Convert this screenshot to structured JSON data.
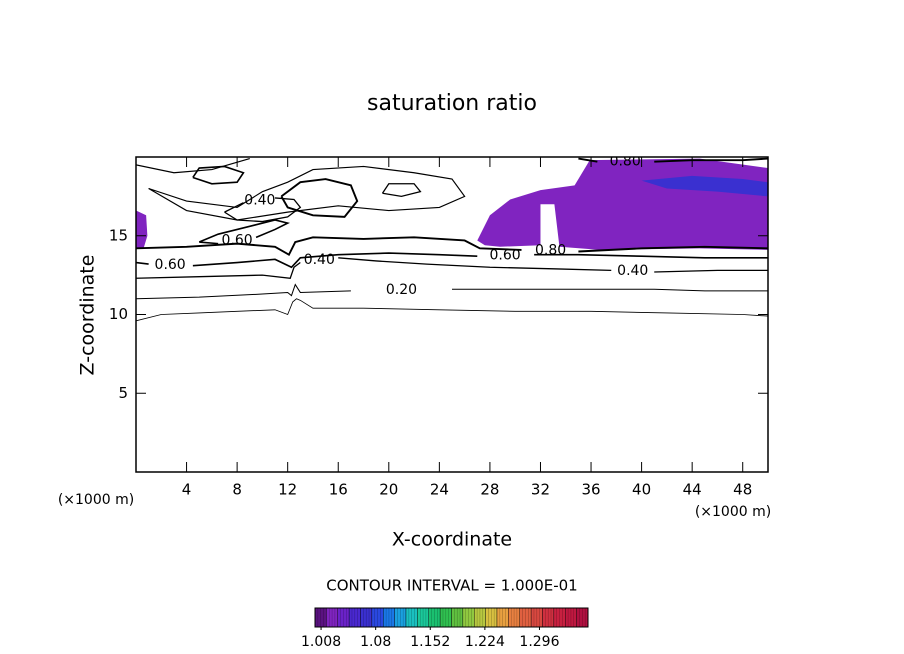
{
  "chart_data": {
    "type": "contour",
    "title": "saturation ratio",
    "xlabel": "X-coordinate",
    "ylabel": "Z-coordinate",
    "x_units": "(×1000 m)",
    "y_units": "(×1000 m)",
    "annotation": "CONTOUR INTERVAL = 1.000E-01",
    "xlim": [
      0,
      50
    ],
    "ylim": [
      0,
      20
    ],
    "xticks": [
      4,
      8,
      12,
      16,
      20,
      24,
      28,
      32,
      36,
      40,
      44,
      48
    ],
    "yticks": [
      5,
      10,
      15
    ],
    "line_color": "#000000",
    "colorbar": {
      "lim": [
        1.0,
        1.36
      ],
      "ticks": [
        1.008,
        1.08,
        1.152,
        1.224,
        1.296
      ],
      "colors": [
        "#5a1280",
        "#8024c0",
        "#6a22c8",
        "#4a28d0",
        "#3a30d0",
        "#2a48e0",
        "#1a78e8",
        "#1aa0e0",
        "#1ac0c0",
        "#1ac89a",
        "#1ac070",
        "#30c050",
        "#60c040",
        "#90c840",
        "#b8c840",
        "#d8c040",
        "#e8a040",
        "#e88040",
        "#e06040",
        "#d84840",
        "#d03040",
        "#c82040",
        "#c01840",
        "#b01040"
      ]
    },
    "shaded_regions": [
      {
        "value": 1.02,
        "x": [
          27.0,
          28.0,
          29.6,
          32.0,
          34.7,
          35.9,
          44.6,
          50,
          50,
          44.6,
          36.7,
          33.5,
          33.1,
          32.0,
          32.0,
          28.8,
          27.6
        ],
        "y": [
          14.7,
          16.3,
          17.3,
          17.9,
          18.2,
          19.8,
          19.9,
          19.3,
          14.1,
          14.2,
          14.1,
          14.3,
          17.0,
          17.0,
          14.4,
          14.3,
          14.4
        ]
      },
      {
        "value": 1.02,
        "x": [
          0,
          0.8,
          0.9,
          0.6,
          0
        ],
        "y": [
          16.6,
          16.3,
          15.0,
          14.2,
          14.2
        ]
      },
      {
        "value": 1.06,
        "x": [
          40,
          44,
          48,
          50,
          50,
          46,
          42
        ],
        "y": [
          18.5,
          18.8,
          18.6,
          18.4,
          17.5,
          17.8,
          18.0
        ]
      }
    ],
    "contours": [
      {
        "level": 0.1,
        "x": [
          0,
          2,
          5,
          8,
          11,
          12,
          12.4,
          12.7,
          13,
          14,
          18,
          24,
          30,
          36,
          42,
          48,
          50
        ],
        "y": [
          9.6,
          10.0,
          10.1,
          10.2,
          10.3,
          10.0,
          10.8,
          11.0,
          10.9,
          10.4,
          10.4,
          10.3,
          10.2,
          10.2,
          10.1,
          10.0,
          9.9
        ]
      },
      {
        "level": 0.2,
        "label": "0.20",
        "x": [
          0,
          5,
          10,
          12,
          12.3,
          12.6,
          13,
          17,
          21,
          25,
          29,
          33,
          37,
          41,
          45,
          50
        ],
        "y": [
          11.0,
          11.1,
          11.3,
          11.4,
          11.2,
          11.9,
          11.4,
          11.5,
          null,
          11.6,
          11.6,
          11.6,
          11.6,
          11.6,
          11.5,
          11.5
        ]
      },
      {
        "level": 0.4,
        "label": "0.40",
        "x": [
          0,
          5,
          10,
          12.2,
          12.5,
          13,
          14.5,
          16,
          19,
          23,
          28,
          33,
          37.6,
          39.3,
          41,
          46,
          50
        ],
        "y": [
          12.3,
          12.4,
          12.5,
          12.3,
          13.0,
          13.3,
          null,
          13.6,
          13.4,
          13.2,
          13.0,
          12.9,
          12.8,
          null,
          12.7,
          12.8,
          12.8
        ]
      },
      {
        "level": 0.6,
        "label": "0.60",
        "x": [
          0,
          1,
          2.7,
          4.5,
          8,
          11,
          12.3,
          13,
          16,
          20,
          24,
          27,
          29.2,
          31.5,
          35,
          40,
          45,
          50
        ],
        "y": [
          13.3,
          13.2,
          null,
          13.1,
          13.3,
          13.5,
          13.0,
          13.6,
          13.8,
          13.9,
          13.8,
          13.7,
          null,
          13.8,
          13.8,
          13.7,
          13.6,
          13.6
        ]
      },
      {
        "level": 0.8,
        "label": "0.80",
        "x": [
          0,
          4,
          8,
          11,
          12.1,
          12.6,
          14,
          18,
          22,
          26,
          27.2,
          30.5,
          32.8,
          35,
          40,
          45,
          50
        ],
        "y": [
          14.2,
          14.3,
          14.5,
          14.3,
          13.8,
          14.6,
          14.9,
          14.8,
          14.9,
          14.7,
          14.2,
          14.1,
          null,
          14.0,
          14.2,
          14.3,
          14.2
        ]
      },
      {
        "level": 0.8,
        "label": "0.80",
        "x": [
          35,
          36.5,
          38.7,
          41,
          44,
          48,
          50
        ],
        "y": [
          19.9,
          19.7,
          null,
          19.7,
          19.8,
          19.8,
          19.9
        ]
      },
      {
        "level": 0.4,
        "label": "0.40",
        "x": [
          7,
          8,
          10,
          12,
          13,
          12.5,
          11,
          9.8,
          8.5,
          7
        ],
        "y": [
          16.5,
          16.0,
          15.9,
          16.2,
          16.8,
          17.3,
          17.4,
          null,
          17.1,
          16.5
        ]
      },
      {
        "level": 0.6,
        "label": "0.60",
        "x": [
          5,
          6.5,
          8,
          9.5,
          11,
          12,
          11,
          9,
          6.5,
          5
        ],
        "y": [
          14.6,
          14.5,
          null,
          14.9,
          15.4,
          15.8,
          16.0,
          15.6,
          15.1,
          14.6
        ]
      },
      {
        "level": 0.6,
        "x": [
          4.5,
          6,
          8,
          8.5,
          7,
          5,
          4.5
        ],
        "y": [
          18.7,
          18.3,
          18.4,
          19.0,
          19.4,
          19.3,
          18.7
        ]
      },
      {
        "level": 0.4,
        "x": [
          19.5,
          21,
          22.5,
          22,
          20,
          19.5
        ],
        "y": [
          17.7,
          17.5,
          17.8,
          18.3,
          18.3,
          17.7
        ]
      },
      {
        "level": 0.8,
        "x": [
          11.5,
          13,
          15,
          17,
          17.5,
          16.5,
          14,
          12,
          11.5
        ],
        "y": [
          17.5,
          18.4,
          18.6,
          18.2,
          17.2,
          16.2,
          16.3,
          16.8,
          17.5
        ]
      },
      {
        "level": 0.3,
        "x": [
          1,
          4,
          8,
          10,
          12,
          14,
          18,
          22,
          25,
          26,
          24,
          20,
          16,
          12,
          8,
          4,
          1
        ],
        "y": [
          18.0,
          17.2,
          16.8,
          17.8,
          18.4,
          19.2,
          19.4,
          19.0,
          18.6,
          17.5,
          16.8,
          16.6,
          16.9,
          16.5,
          16.0,
          16.6,
          18.0
        ]
      },
      {
        "level": 0.3,
        "x": [
          0,
          3,
          6,
          9
        ],
        "y": [
          19.5,
          19.0,
          19.2,
          19.9
        ]
      }
    ]
  }
}
